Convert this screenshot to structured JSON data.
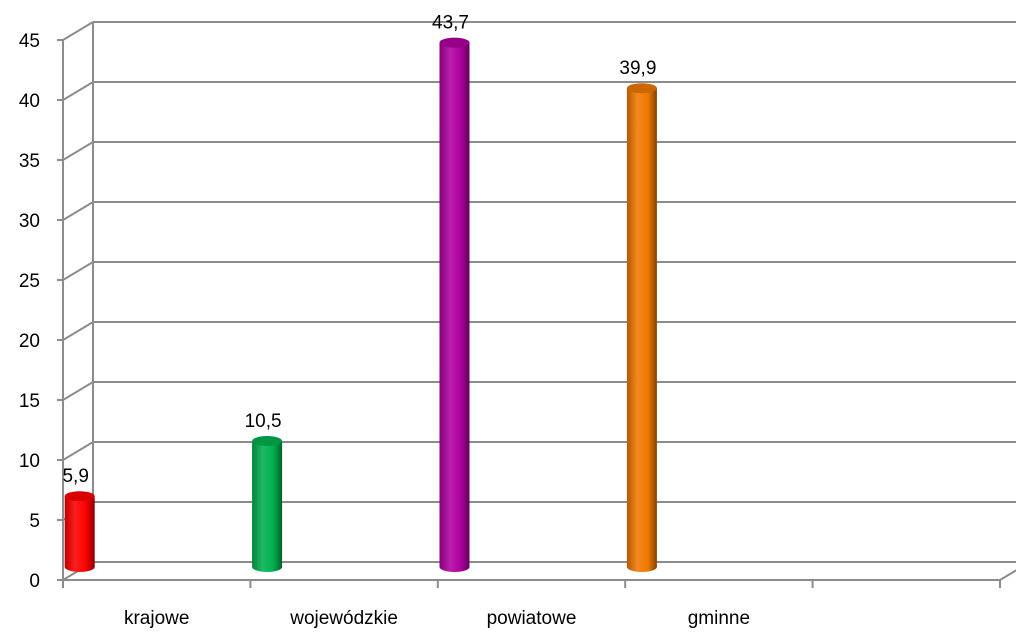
{
  "chart_data": {
    "type": "bar",
    "categories": [
      "krajowe",
      "wojewódzkie",
      "powiatowe",
      "gminne",
      ""
    ],
    "values": [
      5.9,
      10.5,
      43.7,
      39.9,
      null
    ],
    "data_labels": [
      "5,9",
      "10,5",
      "43,7",
      "39,9",
      ""
    ],
    "ylim": [
      0,
      45
    ],
    "yticks": [
      0,
      5,
      10,
      15,
      20,
      25,
      30,
      35,
      40,
      45
    ],
    "ytick_labels": [
      "0",
      "5",
      "10",
      "15",
      "20",
      "25",
      "30",
      "35",
      "40",
      "45"
    ],
    "colors": [
      "#ff0000",
      "#00b050",
      "#b000a0",
      "#f07800"
    ],
    "grid": true,
    "style": "3d-cylinder",
    "legend": "none",
    "title": "",
    "xlabel": "",
    "ylabel": ""
  }
}
